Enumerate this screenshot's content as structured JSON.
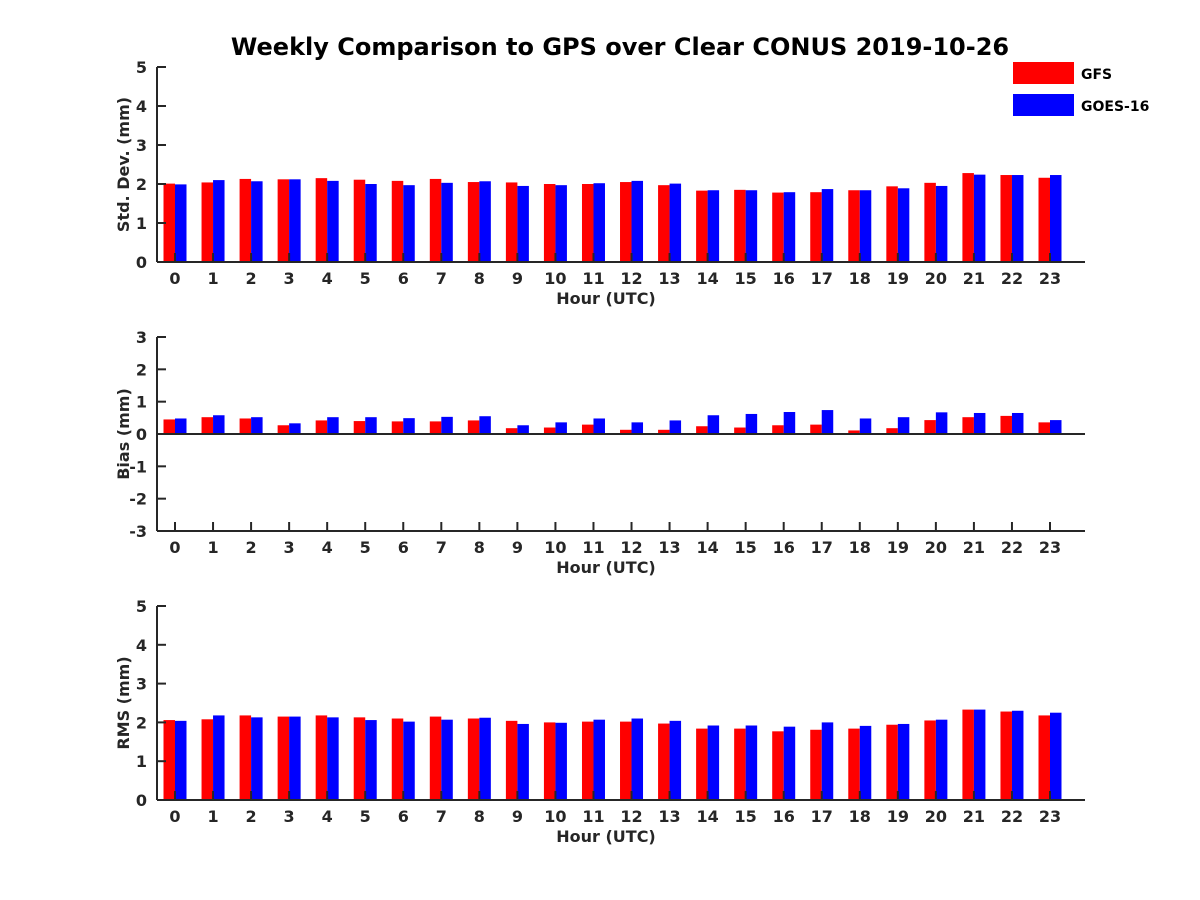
{
  "title": "Weekly Comparison to GPS over Clear CONUS 2019-10-26",
  "legend": {
    "placement": "top-right",
    "items": [
      {
        "label": "GFS",
        "color": "#ff0000"
      },
      {
        "label": "GOES-16",
        "color": "#0000ff"
      }
    ]
  },
  "chart_data": [
    {
      "type": "bar",
      "title": "Weekly Comparison to GPS over Clear CONUS 2019-10-26",
      "xlabel": "Hour (UTC)",
      "ylabel": "Std. Dev. (mm)",
      "ylim": [
        0,
        5
      ],
      "yticks": [
        0,
        1,
        2,
        3,
        4,
        5
      ],
      "grid": false,
      "categories": [
        "0",
        "1",
        "2",
        "3",
        "4",
        "5",
        "6",
        "7",
        "8",
        "9",
        "10",
        "11",
        "12",
        "13",
        "14",
        "15",
        "16",
        "17",
        "18",
        "19",
        "20",
        "21",
        "22",
        "23"
      ],
      "series": [
        {
          "name": "GFS",
          "color": "#ff0000",
          "values": [
            2.01,
            2.04,
            2.13,
            2.12,
            2.15,
            2.11,
            2.08,
            2.13,
            2.05,
            2.04,
            2.0,
            2.0,
            2.05,
            1.97,
            1.83,
            1.85,
            1.78,
            1.79,
            1.84,
            1.94,
            2.03,
            2.28,
            2.23,
            2.16
          ]
        },
        {
          "name": "GOES-16",
          "color": "#0000ff",
          "values": [
            1.99,
            2.1,
            2.07,
            2.12,
            2.08,
            2.0,
            1.97,
            2.03,
            2.07,
            1.95,
            1.97,
            2.02,
            2.08,
            2.01,
            1.84,
            1.84,
            1.79,
            1.87,
            1.84,
            1.89,
            1.95,
            2.24,
            2.23,
            2.23
          ]
        }
      ]
    },
    {
      "type": "bar",
      "xlabel": "Hour (UTC)",
      "ylabel": "Bias (mm)",
      "ylim": [
        -3,
        3
      ],
      "yticks": [
        -3,
        -2,
        -1,
        0,
        1,
        2,
        3
      ],
      "grid": false,
      "categories": [
        "0",
        "1",
        "2",
        "3",
        "4",
        "5",
        "6",
        "7",
        "8",
        "9",
        "10",
        "11",
        "12",
        "13",
        "14",
        "15",
        "16",
        "17",
        "18",
        "19",
        "20",
        "21",
        "22",
        "23"
      ],
      "series": [
        {
          "name": "GFS",
          "color": "#ff0000",
          "values": [
            0.45,
            0.52,
            0.48,
            0.27,
            0.42,
            0.4,
            0.39,
            0.39,
            0.42,
            0.18,
            0.2,
            0.29,
            0.13,
            0.13,
            0.24,
            0.2,
            0.27,
            0.29,
            0.11,
            0.18,
            0.43,
            0.52,
            0.56,
            0.36
          ]
        },
        {
          "name": "GOES-16",
          "color": "#0000ff",
          "values": [
            0.48,
            0.58,
            0.52,
            0.33,
            0.52,
            0.52,
            0.49,
            0.53,
            0.55,
            0.27,
            0.36,
            0.48,
            0.36,
            0.42,
            0.58,
            0.62,
            0.68,
            0.74,
            0.48,
            0.52,
            0.67,
            0.65,
            0.65,
            0.43
          ]
        }
      ]
    },
    {
      "type": "bar",
      "xlabel": "Hour (UTC)",
      "ylabel": "RMS (mm)",
      "ylim": [
        0,
        5
      ],
      "yticks": [
        0,
        1,
        2,
        3,
        4,
        5
      ],
      "grid": false,
      "categories": [
        "0",
        "1",
        "2",
        "3",
        "4",
        "5",
        "6",
        "7",
        "8",
        "9",
        "10",
        "11",
        "12",
        "13",
        "14",
        "15",
        "16",
        "17",
        "18",
        "19",
        "20",
        "21",
        "22",
        "23"
      ],
      "series": [
        {
          "name": "GFS",
          "color": "#ff0000",
          "values": [
            2.06,
            2.08,
            2.18,
            2.15,
            2.18,
            2.13,
            2.1,
            2.15,
            2.1,
            2.04,
            2.0,
            2.02,
            2.02,
            1.97,
            1.84,
            1.84,
            1.77,
            1.81,
            1.84,
            1.94,
            2.05,
            2.33,
            2.28,
            2.18
          ]
        },
        {
          "name": "GOES-16",
          "color": "#0000ff",
          "values": [
            2.04,
            2.18,
            2.13,
            2.15,
            2.13,
            2.06,
            2.02,
            2.07,
            2.12,
            1.96,
            1.99,
            2.07,
            2.1,
            2.04,
            1.92,
            1.92,
            1.89,
            2.0,
            1.91,
            1.96,
            2.07,
            2.33,
            2.3,
            2.25
          ]
        }
      ]
    }
  ]
}
